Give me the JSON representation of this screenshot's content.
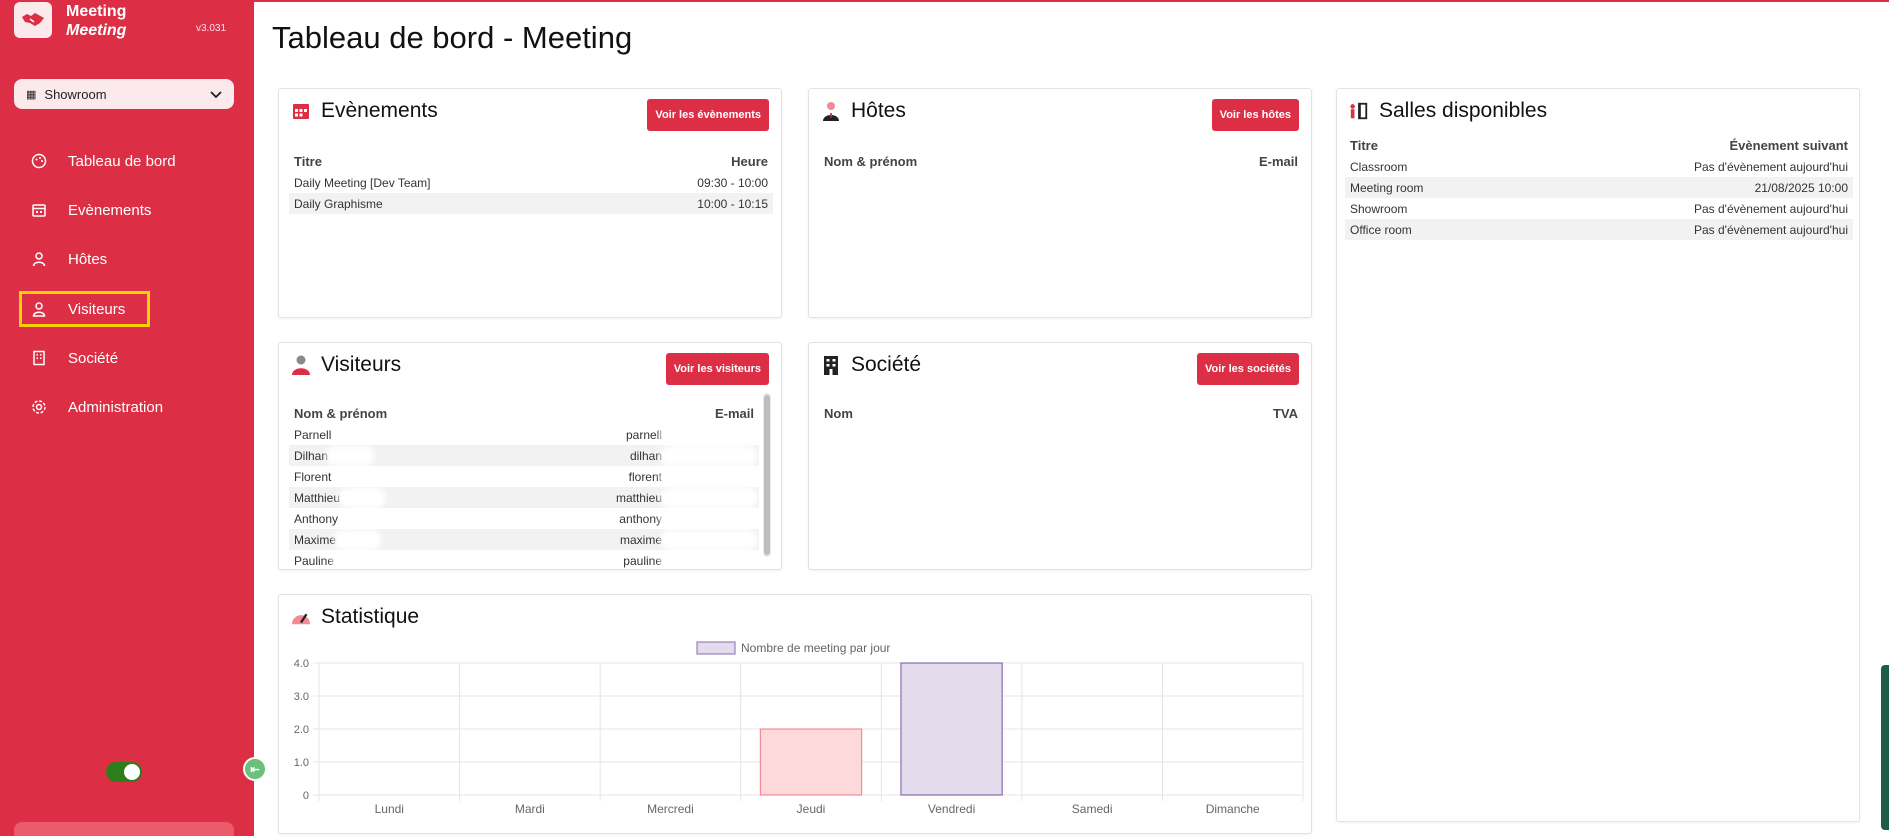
{
  "app": {
    "name_line1": "Meeting",
    "name_line2": "Meeting",
    "version": "v3.031"
  },
  "selector": {
    "value": "Showroom"
  },
  "nav": [
    {
      "label": "Tableau de bord",
      "icon": "palette-icon"
    },
    {
      "label": "Evènements",
      "icon": "calendar-icon"
    },
    {
      "label": "Hôtes",
      "icon": "user-tie-icon"
    },
    {
      "label": "Visiteurs",
      "icon": "user-icon"
    },
    {
      "label": "Société",
      "icon": "building-icon"
    },
    {
      "label": "Administration",
      "icon": "gear-icon"
    }
  ],
  "page_title": "Tableau de bord - Meeting",
  "events": {
    "title": "Evènements",
    "button": "Voir les évènements",
    "col_title": "Titre",
    "col_time": "Heure",
    "rows": [
      {
        "title": "Daily Meeting [Dev Team]",
        "time": "09:30 - 10:00"
      },
      {
        "title": "Daily Graphisme",
        "time": "10:00 - 10:15"
      }
    ]
  },
  "hosts": {
    "title": "Hôtes",
    "button": "Voir les hôtes",
    "col_name": "Nom & prénom",
    "col_email": "E-mail"
  },
  "rooms": {
    "title": "Salles disponibles",
    "col_title": "Titre",
    "col_next": "Évènement suivant",
    "rows": [
      {
        "name": "Classroom",
        "next": "Pas d'évènement aujourd'hui"
      },
      {
        "name": "Meeting room",
        "next": "21/08/2025 10:00"
      },
      {
        "name": "Showroom",
        "next": "Pas d'évènement aujourd'hui"
      },
      {
        "name": "Office room",
        "next": "Pas d'évènement aujourd'hui"
      }
    ]
  },
  "visitors": {
    "title": "Visiteurs",
    "button": "Voir les visiteurs",
    "col_name": "Nom & prénom",
    "col_email": "E-mail",
    "rows": [
      {
        "name": "Parnell",
        "email": "parnell"
      },
      {
        "name": "Dilhan",
        "email": "dilhan"
      },
      {
        "name": "Florent",
        "email": "florent"
      },
      {
        "name": "Matthieu",
        "email": "matthieu"
      },
      {
        "name": "Anthony",
        "email": "anthony"
      },
      {
        "name": "Maxime",
        "email": "maxime"
      },
      {
        "name": "Pauline",
        "email": "pauline"
      }
    ]
  },
  "company": {
    "title": "Société",
    "button": "Voir les sociétés",
    "col_name": "Nom",
    "col_vat": "TVA"
  },
  "stats": {
    "title": "Statistique"
  },
  "chart_data": {
    "type": "bar",
    "categories": [
      "Lundi",
      "Mardi",
      "Mercredi",
      "Jeudi",
      "Vendredi",
      "Samedi",
      "Dimanche"
    ],
    "values": [
      0,
      0,
      0,
      2,
      4,
      0,
      0
    ],
    "series": [
      {
        "name": "Nombre de meeting par jour",
        "values": [
          0,
          0,
          0,
          2,
          4,
          0,
          0
        ]
      }
    ],
    "yticks": [
      "0",
      "1.0",
      "2.0",
      "3.0",
      "4.0"
    ],
    "ylim": [
      0,
      4
    ],
    "legend": "top-center",
    "grid": true,
    "colors": {
      "jeudi_fill": "#fdd9dc",
      "jeudi_stroke": "#f28b97",
      "vendredi_fill": "#e4dcec",
      "vendredi_stroke": "#8a6bb0"
    }
  }
}
